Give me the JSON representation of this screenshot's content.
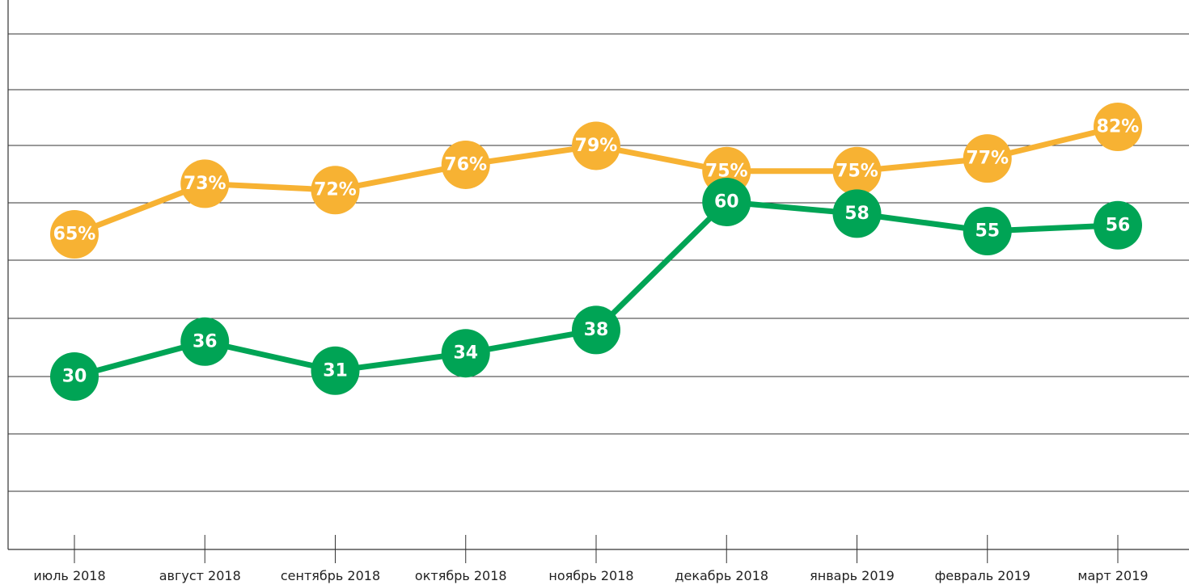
{
  "chart_data": {
    "type": "line",
    "categories": [
      "июль 2018",
      "август 2018",
      "сентябрь 2018",
      "октябрь 2018",
      "ноябрь 2018",
      "декабрь 2018",
      "январь 2019",
      "февраль 2019",
      "март 2019"
    ],
    "series": [
      {
        "color": "#f7b233",
        "values": [
          65,
          73,
          72,
          76,
          79,
          75,
          75,
          77,
          82
        ],
        "value_labels": [
          "65%",
          "73%",
          "72%",
          "76%",
          "79%",
          "75%",
          "75%",
          "77%",
          "82%"
        ]
      },
      {
        "color": "#00a455",
        "values": [
          30,
          36,
          31,
          34,
          38,
          60,
          58,
          55,
          56
        ]
      }
    ],
    "grid": true
  }
}
